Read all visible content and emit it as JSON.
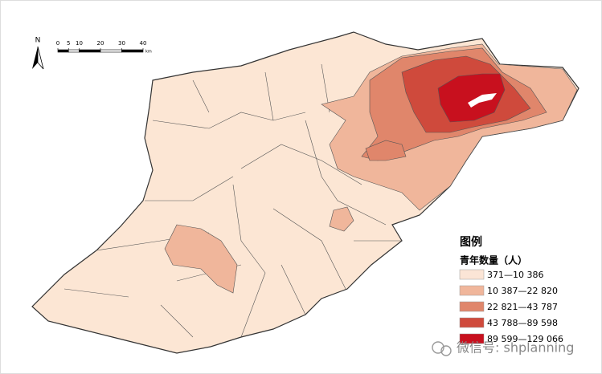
{
  "north": "N",
  "scale": {
    "ticks": [
      0,
      5,
      10,
      20,
      30,
      40
    ],
    "unit": "km"
  },
  "legend": {
    "title": "图例",
    "subtitle": "青年数量（人）",
    "items": [
      {
        "label": "371—10 386",
        "color": "#fbe5d6"
      },
      {
        "label": "10 387—22 820",
        "color": "#f0b69b"
      },
      {
        "label": "22 821—43 787",
        "color": "#e0866b"
      },
      {
        "label": "43 788—89 598",
        "color": "#cf4a3c"
      },
      {
        "label": "89 599—129 066",
        "color": "#c8101e"
      }
    ]
  },
  "watermark": "微信号: shplanning"
}
